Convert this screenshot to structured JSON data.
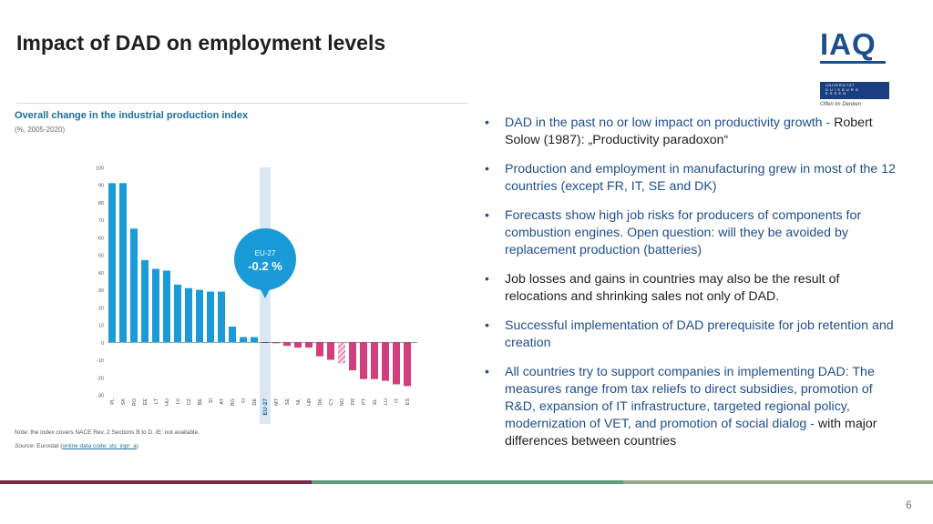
{
  "slide": {
    "title": "Impact of DAD on employment levels",
    "page_number": "6"
  },
  "logo": {
    "name": "IAQ",
    "university_lines": "UNIVERSITÄT\nD U I S B U R G\nE S S E N",
    "tagline": "Offen im Denken"
  },
  "chart_data": {
    "type": "bar",
    "title": "Overall change in the industrial production index",
    "subtitle": "(%, 2005-2020)",
    "categories": [
      "PL",
      "SK",
      "RO",
      "EE",
      "LT",
      "HU",
      "LV",
      "CZ",
      "BE",
      "SI",
      "AT",
      "BG",
      "FI",
      "DE",
      "EU-27",
      "MT",
      "SE",
      "NL",
      "HR",
      "DK",
      "CY",
      "NO",
      "FR",
      "PT",
      "EL",
      "LU",
      "IT",
      "ES"
    ],
    "values": [
      91,
      91,
      65,
      47,
      42,
      41,
      33,
      31,
      30,
      29,
      29,
      9,
      3,
      3,
      -0.2,
      -0.5,
      -2,
      -3,
      -3,
      -8,
      -10,
      -12,
      -16,
      -21,
      -21,
      -22,
      -24,
      -25
    ],
    "highlight": {
      "category": "EU-27",
      "label": "EU-27",
      "value_label": "-0.2 %"
    },
    "hatched": [
      "NO"
    ],
    "ylim": [
      -30,
      100
    ],
    "yticks": [
      100,
      90,
      80,
      70,
      60,
      50,
      40,
      30,
      20,
      10,
      0,
      -10,
      -20,
      -30
    ],
    "positive_color": "#1a9bd7",
    "negative_color": "#d23f7f",
    "highlight_color": "#dde6f3",
    "note": "Note: the index covers NACE Rev. 2 Sections B to D. IE: not available.",
    "source_prefix": "Source:",
    "source_text": " Eurostat (",
    "source_link": "online data code: sts_inpr_a",
    "source_suffix": ")"
  },
  "bullets": [
    {
      "text": "DAD in the past no or low impact on productivity growth - Robert Solow (1987): „Productivity paradoxon“",
      "style": "mixed",
      "dark_part": "Robert Solow (1987): „Productivity paradoxon“",
      "blue_part": "DAD in the past no or low impact on productivity growth - "
    },
    {
      "text": "Production and employment in manufacturing grew in most of the 12 countries (except FR, IT, SE and DK)"
    },
    {
      "text": "Forecasts show high job risks for producers of components for combustion engines.  Open question: will they be avoided by replacement production (batteries)"
    },
    {
      "text": "Job losses and gains in countries may also be the result of relocations and shrinking sales not only  of DAD."
    },
    {
      "text": "Successful implementation of DAD prerequisite for job retention and creation"
    },
    {
      "text": "All countries try to support companies in implementing DAD: The measures range from tax reliefs to direct subsidies, promotion of R&D, expansion of IT infrastructure, targeted regional policy,  modernization of VET, and promotion of social dialog - ",
      "tail": "with major differences between countries"
    }
  ],
  "colors": {
    "title": "#1f1f1f",
    "bullet_text": "#1f4e8c",
    "chart_title": "#1b6f9c",
    "footer_1": "#7b2a45",
    "footer_2": "#5e9e7c",
    "footer_3": "#9aa68c"
  }
}
